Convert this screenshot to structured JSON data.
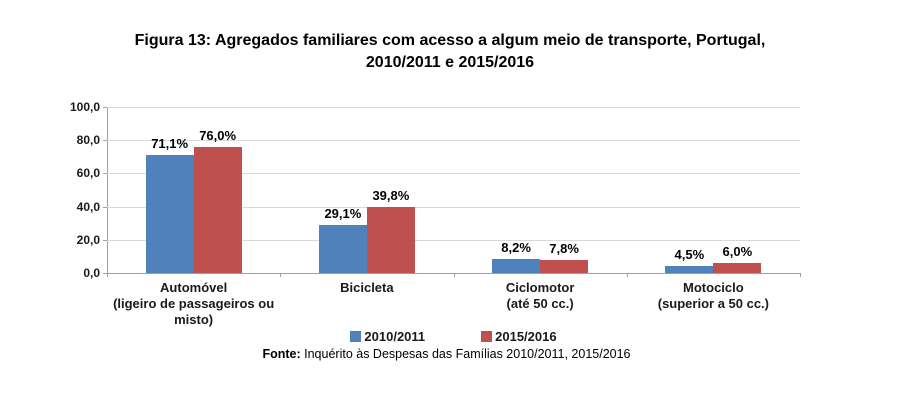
{
  "figure": {
    "title_line1": "Figura 13: Agregados familiares com acesso a algum meio de transporte, Portugal,",
    "title_line2": "2010/2011 e 2015/2016"
  },
  "chart_data": {
    "type": "bar",
    "title": "Figura 13: Agregados familiares com acesso a algum meio de transporte, Portugal, 2010/2011 e 2015/2016",
    "categories": [
      {
        "label": "Automóvel (ligeiro de passageiros ou misto)",
        "lines": [
          "Automóvel",
          "(ligeiro de passageiros ou",
          "misto)"
        ]
      },
      {
        "label": "Bicicleta",
        "lines": [
          "Bicicleta"
        ]
      },
      {
        "label": "Ciclomotor (até 50 cc.)",
        "lines": [
          "Ciclomotor",
          "(até 50 cc.)"
        ]
      },
      {
        "label": "Motociclo (superior a 50 cc.)",
        "lines": [
          "Motociclo",
          "(superior a 50 cc.)"
        ]
      }
    ],
    "series": [
      {
        "name": "2010/2011",
        "color": "#4f81bd",
        "values": [
          71.1,
          29.1,
          8.2,
          4.5
        ],
        "labels": [
          "71,1%",
          "29,1%",
          "8,2%",
          "4,5%"
        ]
      },
      {
        "name": "2015/2016",
        "color": "#c0504d",
        "values": [
          76.0,
          39.8,
          7.8,
          6.0
        ],
        "labels": [
          "76,0%",
          "39,8%",
          "7,8%",
          "6,0%"
        ]
      }
    ],
    "ylabel": "",
    "xlabel": "",
    "ylim": [
      0,
      100
    ],
    "ytick_values": [
      0,
      20,
      40,
      60,
      80,
      100
    ],
    "ytick_labels": [
      "0,0",
      "20,0",
      "40,0",
      "60,0",
      "80,0",
      "100,0"
    ],
    "grid": true,
    "legend_position": "bottom",
    "axis_color": "#9aa0a6",
    "gridline_color": "#d9d9d9"
  },
  "footnote": {
    "prefix": "Fonte:",
    "text": " Inquérito às Despesas das Famílias 2010/2011, 2015/2016"
  }
}
